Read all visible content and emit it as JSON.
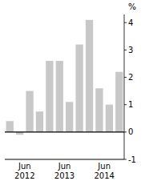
{
  "chart_data": {
    "type": "bar",
    "categories": [
      null,
      "Jun\n2012",
      null,
      null,
      null,
      "Jun\n2013",
      null,
      null,
      null,
      "Jun\n2014",
      null,
      null
    ],
    "values": [
      0.4,
      -0.1,
      1.5,
      0.75,
      2.6,
      2.6,
      1.1,
      3.2,
      4.1,
      1.6,
      1.0,
      2.2
    ],
    "color": "#c8c8c8",
    "ylabel": "%",
    "ylim": [
      -1.0,
      4.3
    ],
    "yticks": [
      -1,
      0,
      1,
      2,
      3,
      4
    ],
    "grid": false
  }
}
